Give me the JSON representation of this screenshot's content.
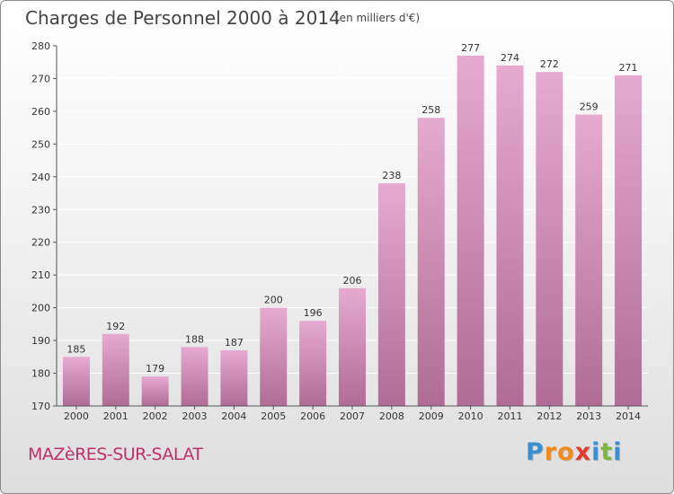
{
  "header": {
    "title": "Charges de Personnel 2000 à 2014",
    "unit": "(en milliers d'€)"
  },
  "footer": {
    "town": "MAZèRES-SUR-SALAT",
    "logo_letters": [
      "P",
      "r",
      "o",
      "x",
      "i",
      "t",
      "i"
    ],
    "logo_colors": [
      "#3a8fd0",
      "#f08a1c",
      "#f08a1c",
      "#e23b2e",
      "#3a8fd0",
      "#7cb83a",
      "#3a8fd0"
    ]
  },
  "colors": {
    "bar_top": "#e6aad0",
    "bar_bottom": "#b06c95",
    "axis": "#555555",
    "grid": "#ffffff"
  },
  "chart_data": {
    "type": "bar",
    "title": "Charges de Personnel 2000 à 2014",
    "xlabel": "",
    "ylabel": "(en milliers d'€)",
    "ylim": [
      170,
      280
    ],
    "yticks": [
      170,
      180,
      190,
      200,
      210,
      220,
      230,
      240,
      250,
      260,
      270,
      280
    ],
    "grid": true,
    "categories": [
      "2000",
      "2001",
      "2002",
      "2003",
      "2004",
      "2005",
      "2006",
      "2007",
      "2008",
      "2009",
      "2010",
      "2011",
      "2012",
      "2013",
      "2014"
    ],
    "values": [
      185,
      192,
      179,
      188,
      187,
      200,
      196,
      206,
      238,
      258,
      277,
      274,
      272,
      259,
      271
    ]
  }
}
